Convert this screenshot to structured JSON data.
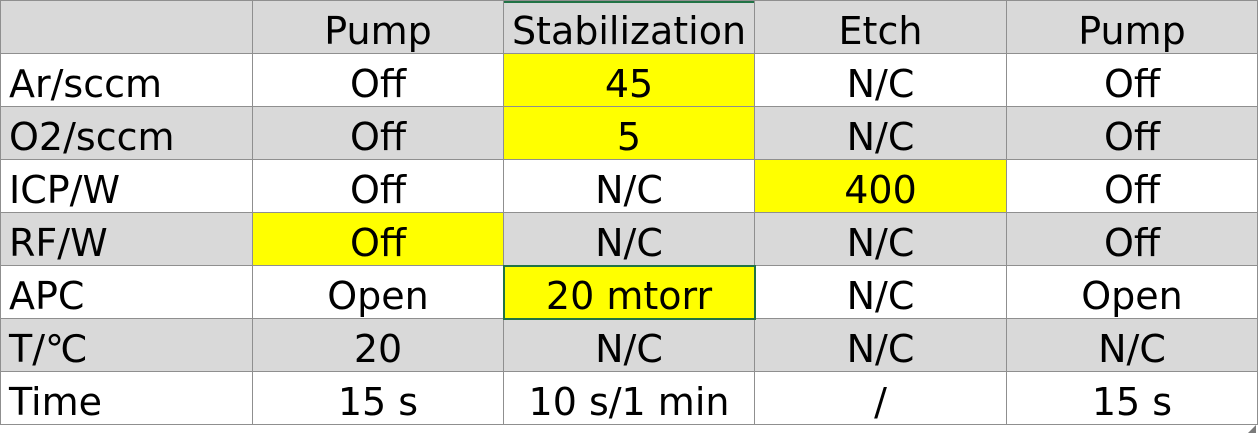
{
  "columns": [
    "",
    "Pump",
    "Stabilization",
    "Etch",
    "Pump"
  ],
  "rows": [
    {
      "label": "Ar/sccm",
      "cells": [
        "Off",
        "45",
        "N/C",
        "Off"
      ]
    },
    {
      "label": "O2/sccm",
      "cells": [
        "Off",
        "5",
        "N/C",
        "Off"
      ]
    },
    {
      "label": "ICP/W",
      "cells": [
        "Off",
        "N/C",
        "400",
        "Off"
      ]
    },
    {
      "label": "RF/W",
      "cells": [
        "Off",
        "N/C",
        "N/C",
        "Off"
      ]
    },
    {
      "label": "APC",
      "cells": [
        "Open",
        "20 mtorr",
        "N/C",
        "Open"
      ]
    },
    {
      "label": "T/℃",
      "cells": [
        "20",
        "N/C",
        "N/C",
        "N/C"
      ]
    },
    {
      "label": "Time",
      "cells": [
        "15 s",
        "10 s/1 min",
        "/",
        "15 s"
      ]
    }
  ],
  "highlight_color": "#ffff00",
  "shade_color": "#d9d9d9",
  "selection_color": "#217346"
}
